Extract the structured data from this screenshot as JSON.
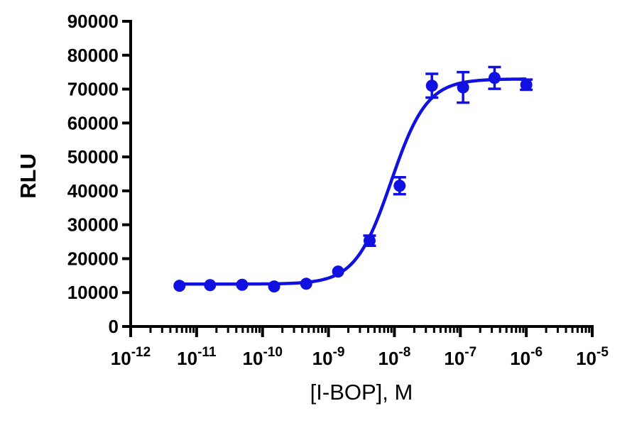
{
  "chart_data": {
    "type": "scatter",
    "xlabel": "[I-BOP], M",
    "ylabel": "RLU",
    "x_scale": "log",
    "xlim": [
      1e-12,
      1e-05
    ],
    "ylim": [
      0,
      90000
    ],
    "grid": false,
    "series_color": "#1010e0",
    "x_tick_labels": [
      {
        "base": "10",
        "exp": "-12"
      },
      {
        "base": "10",
        "exp": "-11"
      },
      {
        "base": "10",
        "exp": "-10"
      },
      {
        "base": "10",
        "exp": "-9"
      },
      {
        "base": "10",
        "exp": "-8"
      },
      {
        "base": "10",
        "exp": "-7"
      },
      {
        "base": "10",
        "exp": "-6"
      },
      {
        "base": "10",
        "exp": "-5"
      }
    ],
    "y_tick_labels": [
      "0",
      "10000",
      "20000",
      "30000",
      "40000",
      "50000",
      "60000",
      "70000",
      "80000",
      "90000"
    ],
    "points": [
      {
        "x": 5.5e-12,
        "y": 12000,
        "err": 0
      },
      {
        "x": 1.6e-11,
        "y": 12200,
        "err": 0
      },
      {
        "x": 4.9e-11,
        "y": 12300,
        "err": 0
      },
      {
        "x": 1.5e-10,
        "y": 11800,
        "err": 0
      },
      {
        "x": 4.6e-10,
        "y": 12600,
        "err": 0
      },
      {
        "x": 1.4e-09,
        "y": 16200,
        "err": 0
      },
      {
        "x": 4.2e-09,
        "y": 25300,
        "err": 1500
      },
      {
        "x": 1.2e-08,
        "y": 41500,
        "err": 2500
      },
      {
        "x": 3.7e-08,
        "y": 71000,
        "err": 3500
      },
      {
        "x": 1.1e-07,
        "y": 70500,
        "err": 4500
      },
      {
        "x": 3.3e-07,
        "y": 73300,
        "err": 3200
      },
      {
        "x": 1e-06,
        "y": 71300,
        "err": 1500
      }
    ],
    "fit": {
      "model": "four-parameter logistic",
      "bottom": 12500,
      "top": 73000,
      "log_ec50": -8.05,
      "hill": 1.6
    }
  }
}
